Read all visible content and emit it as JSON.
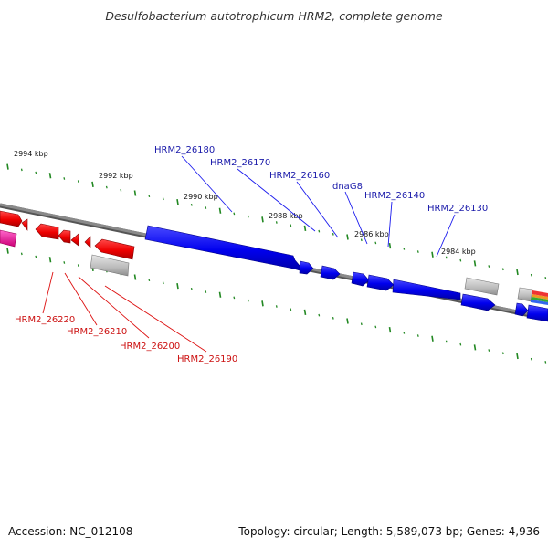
{
  "title": "Desulfobacterium autotrophicum HRM2, complete genome",
  "footer": {
    "accession": "Accession: NC_012108",
    "summary": "Topology: circular; Length: 5,589,073 bp; Genes: 4,936"
  },
  "kbp_labels": [
    "2994 kbp",
    "2992 kbp",
    "2990 kbp",
    "2988 kbp",
    "2986 kbp",
    "2984 kbp"
  ],
  "forward_gene_labels": [
    "HRM2_26180",
    "HRM2_26170",
    "HRM2_26160",
    "dnaG8",
    "HRM2_26140",
    "HRM2_26130"
  ],
  "reverse_gene_labels": [
    "HRM2_26220",
    "HRM2_26210",
    "HRM2_26200",
    "HRM2_26190"
  ],
  "colors": {
    "forward_gene": "#0000ee",
    "reverse_gene": "#ee0000",
    "pseudo_gene": "#bbbbbb",
    "magenta_feature": "#ee1199",
    "backbone": "#808080",
    "tick": "#228822",
    "blue_label": "#1a1aaa",
    "red_label": "#cc1111"
  }
}
